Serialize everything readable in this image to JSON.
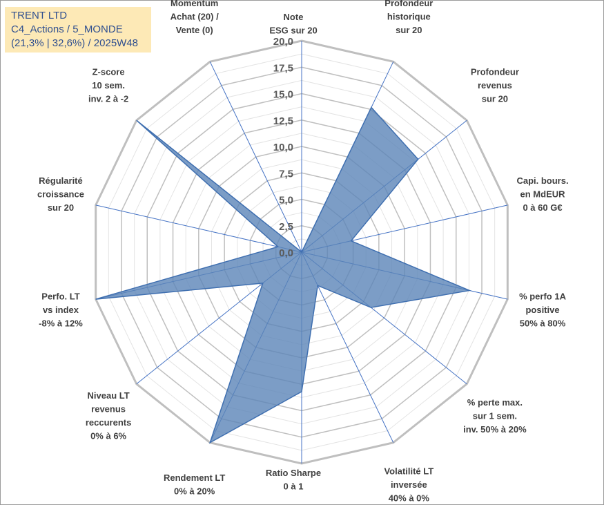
{
  "header": {
    "lines": [
      "TRENT LTD",
      "C4_Actions / 5_MONDE",
      "(21,3% | 32,6%) / 2025W48"
    ]
  },
  "chart_data": {
    "type": "radar",
    "rmax": 20,
    "ticks": [
      "0,0",
      "2,5",
      "5,0",
      "7,5",
      "10,0",
      "12,5",
      "15,0",
      "17,5",
      "20,0"
    ],
    "axes": [
      {
        "label": [
          "Note",
          "ESG sur 20"
        ],
        "value": 0
      },
      {
        "label": [
          "Profondeur",
          "historique",
          "sur 20"
        ],
        "value": 15.2
      },
      {
        "label": [
          "Profondeur",
          "revenus",
          "sur 20"
        ],
        "value": 14.1
      },
      {
        "label": [
          "Capi. bours.",
          "en MdEUR",
          "0 à 60 G€"
        ],
        "value": 4.8
      },
      {
        "label": [
          "% perfo 1A",
          "positive",
          "50% à 80%"
        ],
        "value": 16.3
      },
      {
        "label": [
          "% perte max.",
          "sur 1 sem.",
          "inv. 50% à 20%"
        ],
        "value": 8.4
      },
      {
        "label": [
          "Volatilité LT",
          "inversée",
          "40% à 0%"
        ],
        "value": 3.5
      },
      {
        "label": [
          "Ratio Sharpe",
          "0 à 1"
        ],
        "value": 13.2
      },
      {
        "label": [
          "Rendement LT",
          "0% à 20%"
        ],
        "value": 20
      },
      {
        "label": [
          "Niveau LT",
          "revenus",
          "reccurents",
          "0% à 6%"
        ],
        "value": 4.7
      },
      {
        "label": [
          "Perfo. LT",
          "vs index",
          "-8% à 12%"
        ],
        "value": 20
      },
      {
        "label": [
          "Régularité",
          "croissance",
          "sur 20"
        ],
        "value": 2.3
      },
      {
        "label": [
          "Z-score",
          "10 sem.",
          "inv. 2 à -2"
        ],
        "value": 20
      },
      {
        "label": [
          "Momentum",
          "Achat (20) /",
          "Vente (0)"
        ],
        "value": 0
      }
    ],
    "colors": {
      "fill": "#5b84b8",
      "stroke": "#3f6fb0",
      "spoke": "#4472c4",
      "grid": "#bfbfbf",
      "grid_minor": "#e3e3e3"
    }
  }
}
